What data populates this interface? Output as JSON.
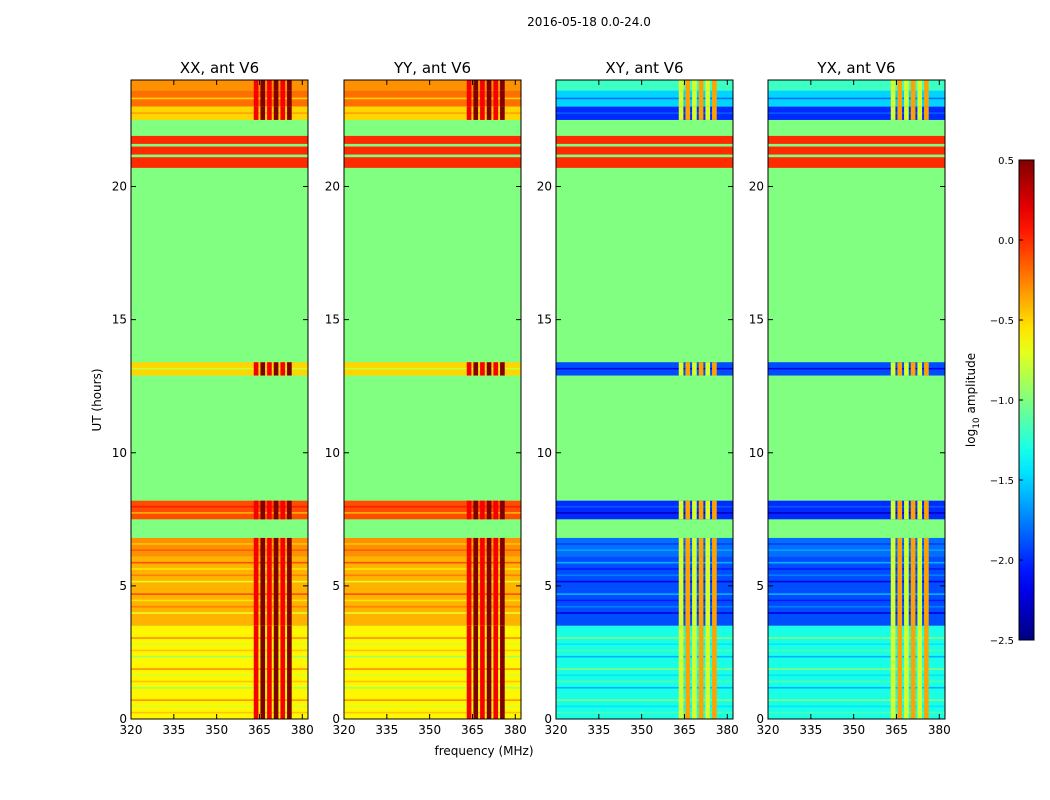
{
  "chart_data": {
    "type": "heatmap",
    "suptitle": "2016-05-18 0.0-24.0",
    "xlabel": "frequency (MHz)",
    "ylabel": "UT (hours)",
    "xlim": [
      320,
      382
    ],
    "ylim": [
      0,
      24
    ],
    "xticks": [
      320,
      335,
      350,
      365,
      380
    ],
    "yticks": [
      0,
      5,
      10,
      15,
      20
    ],
    "panels": [
      {
        "title": "XX, ant V6",
        "kind": "parallel"
      },
      {
        "title": "YY, ant V6",
        "kind": "parallel"
      },
      {
        "title": "XY, ant V6",
        "kind": "cross"
      },
      {
        "title": "YX, ant V6",
        "kind": "cross"
      }
    ],
    "colorbar": {
      "label_main": "log",
      "label_sub": "10",
      "label_rest": " amplitude",
      "range": [
        -2.5,
        0.5
      ],
      "tick_values": [
        0.5,
        0.0,
        -0.5,
        -1.0,
        -1.5,
        -2.0,
        -2.5
      ],
      "tick_labels": [
        "0.5",
        "0.0",
        "−0.5",
        "−1.0",
        "−1.5",
        "−2.0",
        "−2.5"
      ],
      "colormap": "jet"
    },
    "background_value": -1.0,
    "bands": [
      {
        "t0": 23.6,
        "t1": 24.0,
        "parallel": -0.3,
        "cross": -1.2
      },
      {
        "t0": 23.0,
        "t1": 23.6,
        "parallel": -0.2,
        "cross": -1.5
      },
      {
        "t0": 22.5,
        "t1": 23.0,
        "parallel": -0.5,
        "cross": -2.0
      },
      {
        "t0": 21.6,
        "t1": 21.9,
        "parallel": 0.0,
        "cross": 0.0
      },
      {
        "t0": 21.2,
        "t1": 21.5,
        "parallel": 0.0,
        "cross": 0.0
      },
      {
        "t0": 20.7,
        "t1": 21.1,
        "parallel": 0.0,
        "cross": 0.0
      },
      {
        "t0": 12.9,
        "t1": 13.4,
        "parallel": -0.5,
        "cross": -1.9
      },
      {
        "t0": 7.5,
        "t1": 8.2,
        "parallel": -0.1,
        "cross": -2.0
      },
      {
        "t0": 6.1,
        "t1": 6.8,
        "parallel": -0.3,
        "cross": -1.8
      },
      {
        "t0": 3.5,
        "t1": 6.1,
        "parallel": -0.4,
        "cross": -1.9
      },
      {
        "t0": 0.0,
        "t1": 3.5,
        "parallel": -0.6,
        "cross": -1.3
      }
    ],
    "rfi_frequency_range": [
      363,
      377
    ],
    "rfi_value_parallel": 0.3,
    "rfi_value_cross": -0.6
  }
}
